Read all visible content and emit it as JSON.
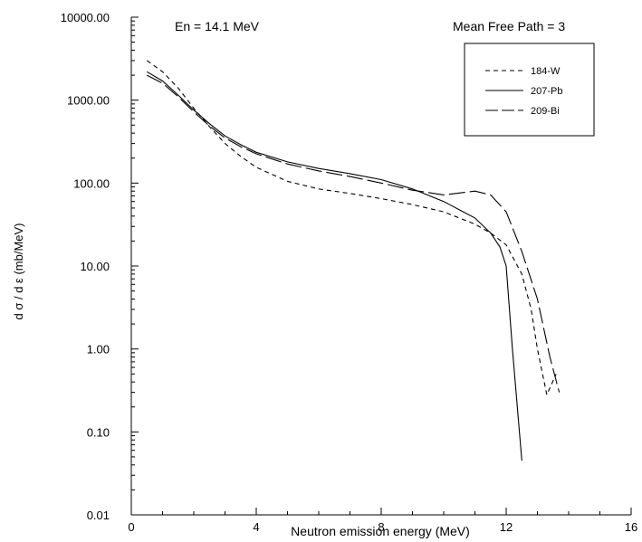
{
  "chart_data": {
    "type": "line",
    "title_left": "En =  14.1 MeV",
    "title_right": "Mean Free Path = 3",
    "xlabel": "Neutron emission energy  (MeV)",
    "ylabel": "d σ / d ε  (mb/MeV)",
    "xlim": [
      0,
      16
    ],
    "ylim": [
      0.01,
      10000
    ],
    "y_scale": "log",
    "x_ticks": [
      0,
      4,
      8,
      12,
      16
    ],
    "x_tick_labels": [
      "0",
      "4",
      "8",
      "12",
      "16"
    ],
    "y_ticks": [
      0.01,
      0.1,
      1,
      10,
      100,
      1000,
      10000
    ],
    "y_tick_labels": [
      "0.01",
      "0.10",
      "1.00",
      "10.00",
      "100.00",
      "1000.00",
      "10000.00"
    ],
    "grid": false,
    "legend_position": "top-right",
    "series": [
      {
        "name": "184-W",
        "line_style": "short-dash",
        "x": [
          0.5,
          1.0,
          1.5,
          2.0,
          2.5,
          3.0,
          3.5,
          4.0,
          5.0,
          6.0,
          7.0,
          8.0,
          9.0,
          10.0,
          11.0,
          11.5,
          12.0,
          12.5,
          12.8,
          13.0,
          13.3,
          13.6
        ],
        "y": [
          3000,
          2200,
          1400,
          800,
          480,
          300,
          210,
          155,
          105,
          85,
          75,
          65,
          55,
          45,
          32,
          25,
          18,
          8,
          3,
          1,
          0.28,
          0.5
        ]
      },
      {
        "name": "207-Pb",
        "line_style": "solid",
        "x": [
          0.5,
          1.0,
          1.5,
          2.0,
          2.5,
          3.0,
          3.5,
          4.0,
          5.0,
          6.0,
          7.0,
          8.0,
          9.0,
          10.0,
          11.0,
          11.5,
          11.8,
          12.0,
          12.2,
          12.5
        ],
        "y": [
          2200,
          1700,
          1150,
          760,
          520,
          370,
          290,
          235,
          180,
          150,
          130,
          110,
          85,
          60,
          38,
          25,
          17,
          10,
          1,
          0.045
        ]
      },
      {
        "name": "209-Bi",
        "line_style": "long-dash",
        "x": [
          0.5,
          1.0,
          1.5,
          2.0,
          2.5,
          3.0,
          3.5,
          4.0,
          5.0,
          6.0,
          7.0,
          8.0,
          9.0,
          10.0,
          10.5,
          11.0,
          11.5,
          12.0,
          12.5,
          13.0,
          13.4,
          13.7
        ],
        "y": [
          2000,
          1600,
          1100,
          720,
          490,
          350,
          275,
          225,
          170,
          140,
          120,
          100,
          82,
          72,
          76,
          80,
          72,
          45,
          15,
          4,
          0.8,
          0.3
        ]
      }
    ]
  }
}
